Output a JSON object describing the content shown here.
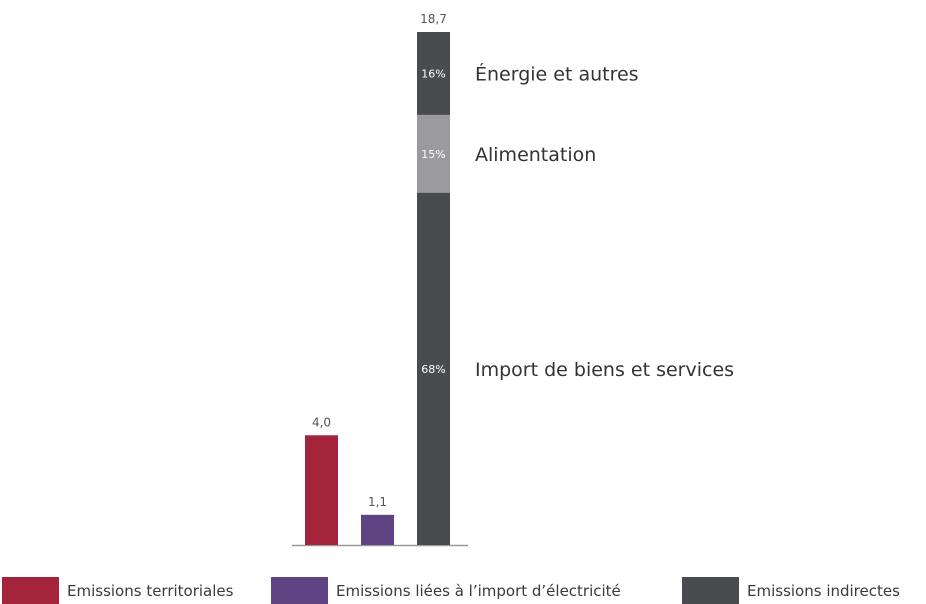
{
  "chart_data": {
    "type": "bar",
    "categories": [
      "Emissions territoriales",
      "Emissions liées à l’import d’électricité",
      "Emissions indirectes"
    ],
    "values": [
      4.0,
      1.1,
      18.7
    ],
    "value_labels": [
      "4,0",
      "1,1",
      "18,7"
    ],
    "colors": [
      "#a3243b",
      "#5e4483",
      "#4a4b4e"
    ],
    "stacked_breakdown": {
      "bar": "Emissions indirectes",
      "segments": [
        {
          "name": "Import de biens et services",
          "percent_label": "68%",
          "share": 0.68,
          "color": "#4a4b4e"
        },
        {
          "name": "Alimentation",
          "percent_label": "15%",
          "share": 0.15,
          "color": "#9b9b9d"
        },
        {
          "name": "Énergie et autres",
          "percent_label": "16%",
          "share": 0.16,
          "color": "#4a4b4e"
        }
      ]
    },
    "ylim": [
      0,
      18.7
    ],
    "grid": false,
    "legend": "bottom"
  },
  "legend": {
    "items": [
      {
        "label": "Emissions territoriales",
        "color": "#a3243b"
      },
      {
        "label": "Emissions liées à l’import d’électricité",
        "color": "#5e4483"
      },
      {
        "label": "Emissions indirectes",
        "color": "#4a4b4e"
      }
    ]
  }
}
